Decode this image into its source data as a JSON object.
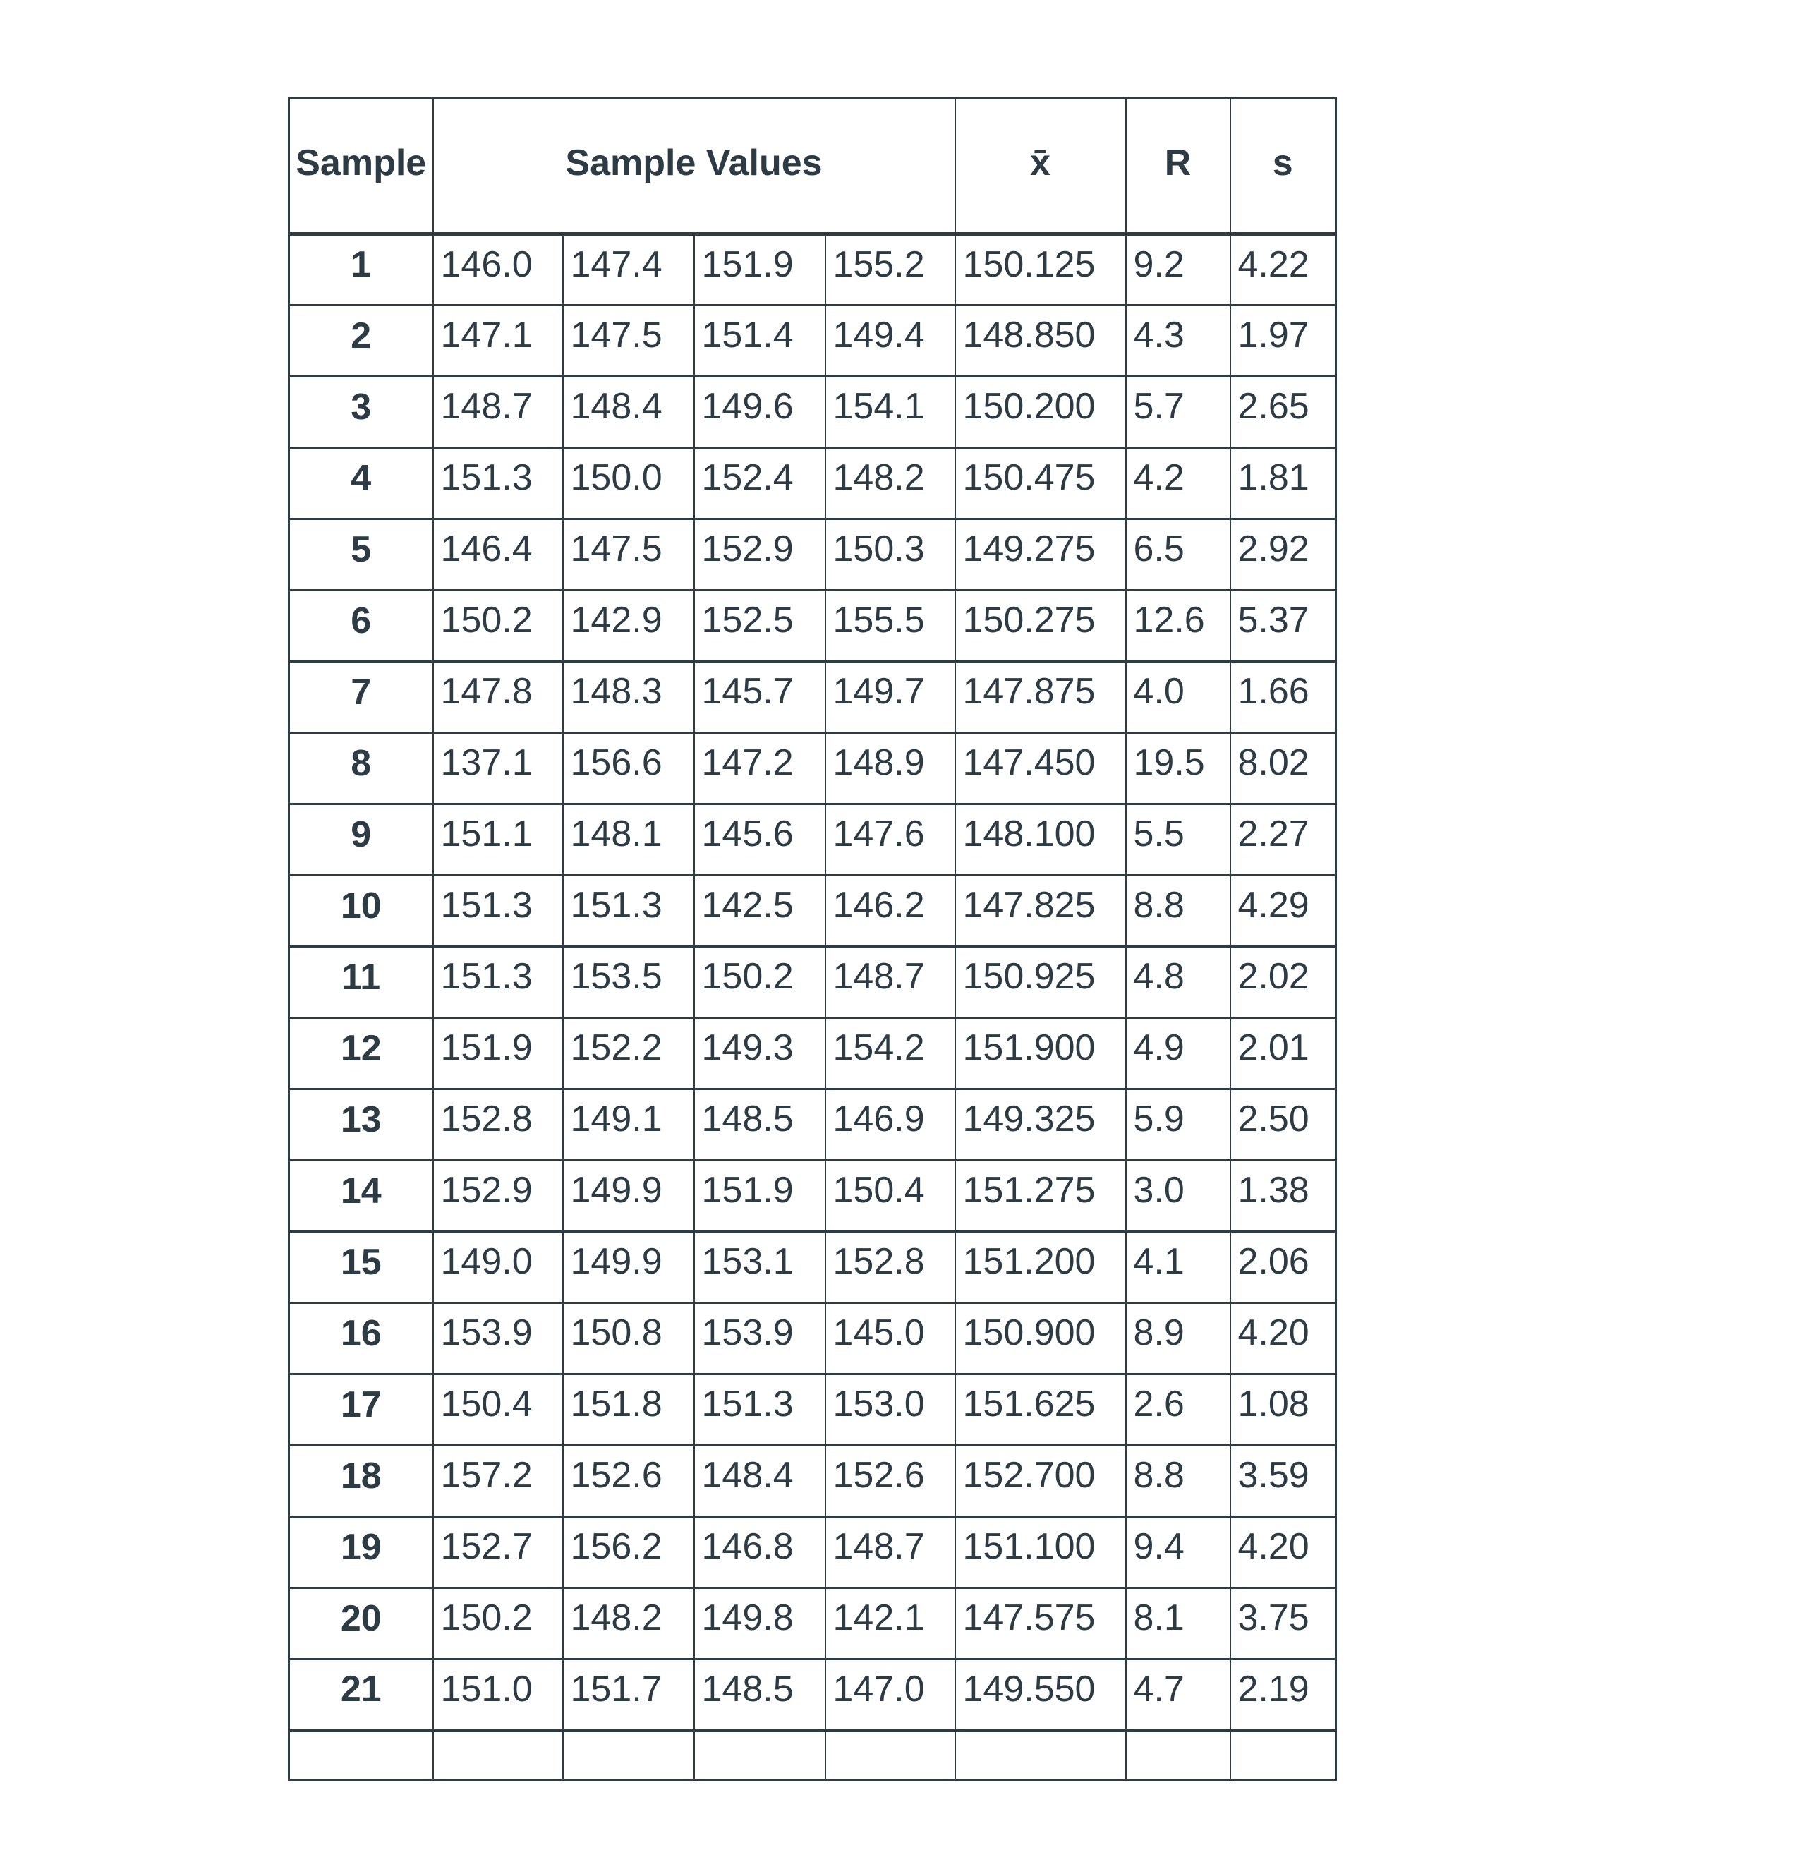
{
  "colors": {
    "text": "#2d3b45",
    "border": "#2e3c46",
    "background": "#ffffff"
  },
  "table": {
    "headers": {
      "sample": "Sample",
      "values": "Sample Values",
      "xbar": "x̄",
      "r": "R",
      "s": "s"
    },
    "rows": [
      {
        "sample": "1",
        "values": [
          "146.0",
          "147.4",
          "151.9",
          "155.2"
        ],
        "xbar": "150.125",
        "r": "9.2",
        "s": "4.22"
      },
      {
        "sample": "2",
        "values": [
          "147.1",
          "147.5",
          "151.4",
          "149.4"
        ],
        "xbar": "148.850",
        "r": "4.3",
        "s": "1.97"
      },
      {
        "sample": "3",
        "values": [
          "148.7",
          "148.4",
          "149.6",
          "154.1"
        ],
        "xbar": "150.200",
        "r": "5.7",
        "s": "2.65"
      },
      {
        "sample": "4",
        "values": [
          "151.3",
          "150.0",
          "152.4",
          "148.2"
        ],
        "xbar": "150.475",
        "r": "4.2",
        "s": "1.81"
      },
      {
        "sample": "5",
        "values": [
          "146.4",
          "147.5",
          "152.9",
          "150.3"
        ],
        "xbar": "149.275",
        "r": "6.5",
        "s": "2.92"
      },
      {
        "sample": "6",
        "values": [
          "150.2",
          "142.9",
          "152.5",
          "155.5"
        ],
        "xbar": "150.275",
        "r": "12.6",
        "s": "5.37"
      },
      {
        "sample": "7",
        "values": [
          "147.8",
          "148.3",
          "145.7",
          "149.7"
        ],
        "xbar": "147.875",
        "r": "4.0",
        "s": "1.66"
      },
      {
        "sample": "8",
        "values": [
          "137.1",
          "156.6",
          "147.2",
          "148.9"
        ],
        "xbar": "147.450",
        "r": "19.5",
        "s": "8.02"
      },
      {
        "sample": "9",
        "values": [
          "151.1",
          "148.1",
          "145.6",
          "147.6"
        ],
        "xbar": "148.100",
        "r": "5.5",
        "s": "2.27"
      },
      {
        "sample": "10",
        "values": [
          "151.3",
          "151.3",
          "142.5",
          "146.2"
        ],
        "xbar": "147.825",
        "r": "8.8",
        "s": "4.29"
      },
      {
        "sample": "11",
        "values": [
          "151.3",
          "153.5",
          "150.2",
          "148.7"
        ],
        "xbar": "150.925",
        "r": "4.8",
        "s": "2.02"
      },
      {
        "sample": "12",
        "values": [
          "151.9",
          "152.2",
          "149.3",
          "154.2"
        ],
        "xbar": "151.900",
        "r": "4.9",
        "s": "2.01"
      },
      {
        "sample": "13",
        "values": [
          "152.8",
          "149.1",
          "148.5",
          "146.9"
        ],
        "xbar": "149.325",
        "r": "5.9",
        "s": "2.50"
      },
      {
        "sample": "14",
        "values": [
          "152.9",
          "149.9",
          "151.9",
          "150.4"
        ],
        "xbar": "151.275",
        "r": "3.0",
        "s": "1.38"
      },
      {
        "sample": "15",
        "values": [
          "149.0",
          "149.9",
          "153.1",
          "152.8"
        ],
        "xbar": "151.200",
        "r": "4.1",
        "s": "2.06"
      },
      {
        "sample": "16",
        "values": [
          "153.9",
          "150.8",
          "153.9",
          "145.0"
        ],
        "xbar": "150.900",
        "r": "8.9",
        "s": "4.20"
      },
      {
        "sample": "17",
        "values": [
          "150.4",
          "151.8",
          "151.3",
          "153.0"
        ],
        "xbar": "151.625",
        "r": "2.6",
        "s": "1.08"
      },
      {
        "sample": "18",
        "values": [
          "157.2",
          "152.6",
          "148.4",
          "152.6"
        ],
        "xbar": "152.700",
        "r": "8.8",
        "s": "3.59"
      },
      {
        "sample": "19",
        "values": [
          "152.7",
          "156.2",
          "146.8",
          "148.7"
        ],
        "xbar": "151.100",
        "r": "9.4",
        "s": "4.20"
      },
      {
        "sample": "20",
        "values": [
          "150.2",
          "148.2",
          "149.8",
          "142.1"
        ],
        "xbar": "147.575",
        "r": "8.1",
        "s": "3.75"
      },
      {
        "sample": "21",
        "values": [
          "151.0",
          "151.7",
          "148.5",
          "147.0"
        ],
        "xbar": "149.550",
        "r": "4.7",
        "s": "2.19"
      }
    ]
  }
}
